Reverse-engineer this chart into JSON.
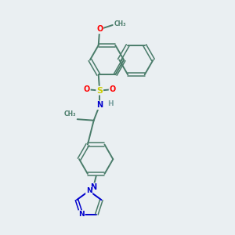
{
  "bg_color": "#eaeff2",
  "bond_color": "#4a7c6a",
  "atom_colors": {
    "O": "#ff0000",
    "S": "#cccc00",
    "N": "#0000cc",
    "H": "#7aa0a0",
    "C": "#4a7c6a"
  },
  "figsize": [
    3.0,
    3.0
  ],
  "dpi": 100,
  "xlim": [
    0,
    10
  ],
  "ylim": [
    0,
    10
  ]
}
